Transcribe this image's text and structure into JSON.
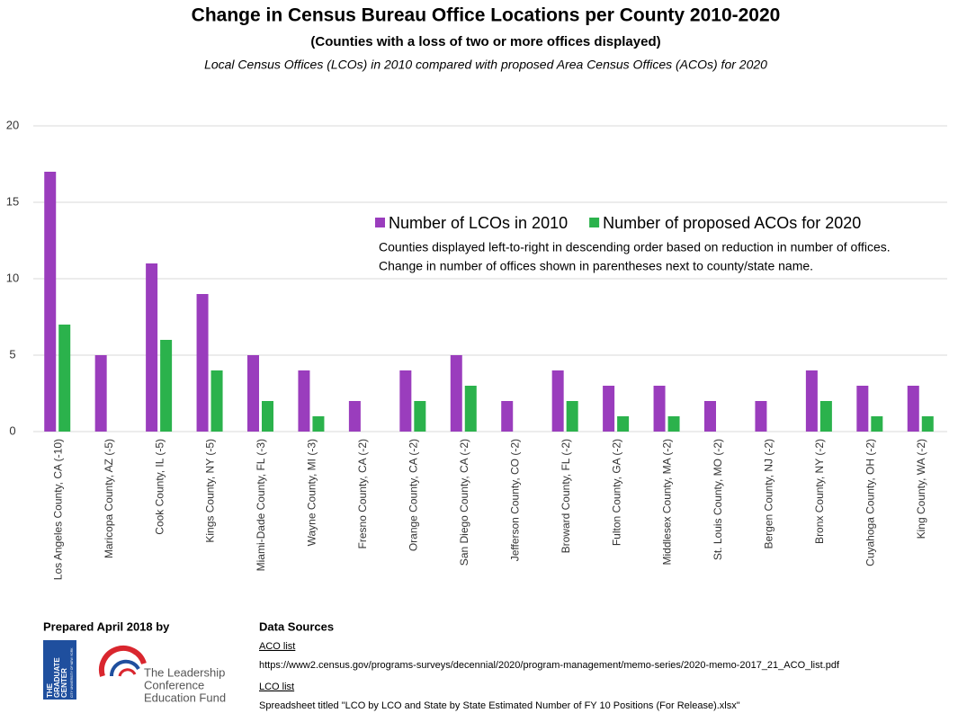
{
  "chart_data": {
    "type": "bar",
    "title": "Change in Census Bureau Office Locations per County 2010-2020",
    "subtitle": "(Counties with a loss of two or more offices displayed)",
    "description": "Local Census Offices (LCOs) in 2010 compared with proposed Area Census Offices (ACOs) for 2020",
    "categories": [
      "Los Angeles County, CA (-10)",
      "Maricopa County, AZ (-5)",
      "Cook County, IL (-5)",
      "Kings County, NY (-5)",
      "Miami-Dade County, FL (-3)",
      "Wayne County, MI (-3)",
      "Fresno County, CA (-2)",
      "Orange County, CA (-2)",
      "San Diego County, CA (-2)",
      "Jefferson County, CO (-2)",
      "Broward County, FL (-2)",
      "Fulton County, GA (-2)",
      "Middlesex County, MA (-2)",
      "St. Louis County, MO (-2)",
      "Bergen County, NJ (-2)",
      "Bronx County, NY (-2)",
      "Cuyahoga County, OH (-2)",
      "King County, WA (-2)"
    ],
    "series": [
      {
        "name": "Number of LCOs in 2010",
        "color": "#9a3dbd",
        "values": [
          17,
          5,
          11,
          9,
          5,
          4,
          2,
          4,
          5,
          2,
          4,
          3,
          3,
          2,
          2,
          4,
          3,
          3
        ]
      },
      {
        "name": "Number of proposed ACOs for 2020",
        "color": "#2bb24c",
        "values": [
          7,
          0,
          6,
          4,
          2,
          1,
          0,
          2,
          3,
          0,
          2,
          1,
          1,
          0,
          0,
          2,
          1,
          1
        ]
      }
    ],
    "notes": [
      "Counties displayed left-to-right in descending order based on reduction in number of offices.",
      "Change in number of offices shown in parentheses next to county/state name."
    ],
    "ylim": [
      0,
      20
    ],
    "yticks": [
      0,
      5,
      10,
      15,
      20
    ],
    "grid": true
  },
  "footer": {
    "prepared": "Prepared April 2018 by",
    "logo1": [
      "THE",
      "GRADUATE",
      "CENTER",
      "CITY UNIVERSITY OF NEW YORK"
    ],
    "logo2": [
      "The Leadership",
      "Conference",
      "Education Fund"
    ],
    "sources_title": "Data Sources",
    "aco_link": "ACO list",
    "aco_url": "https://www2.census.gov/programs-surveys/decennial/2020/program-management/memo-series/2020-memo-2017_21_ACO_list.pdf",
    "lco_link": "LCO list",
    "lco_text": "Spreadsheet titled \"LCO by LCO and State by State Estimated Number of FY 10 Positions (For Release).xlsx\""
  }
}
